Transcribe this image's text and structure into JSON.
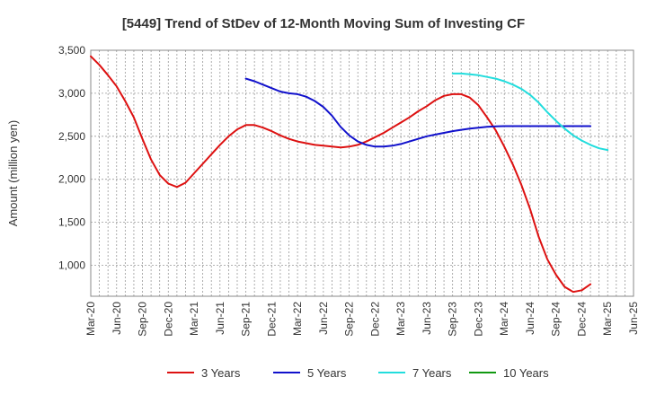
{
  "chart_data": {
    "type": "line",
    "title": "[5449]  Trend of StDev of 12-Month Moving Sum of Investing CF",
    "xlabel": "",
    "ylabel": "Amount (million yen)",
    "ylim": [
      640,
      3500
    ],
    "yticks": [
      1000,
      1500,
      2000,
      2500,
      3000,
      3500
    ],
    "ytick_labels": [
      "1,000",
      "1,500",
      "2,000",
      "2,500",
      "3,000",
      "3,500"
    ],
    "xtick_labels": [
      "Mar-20",
      "Jun-20",
      "Sep-20",
      "Dec-20",
      "Mar-21",
      "Jun-21",
      "Sep-21",
      "Dec-21",
      "Mar-22",
      "Jun-22",
      "Sep-22",
      "Dec-22",
      "Mar-23",
      "Jun-23",
      "Sep-23",
      "Dec-23",
      "Mar-24",
      "Jun-24",
      "Sep-24",
      "Dec-24",
      "Mar-25",
      "Jun-25"
    ],
    "grid": true,
    "legend_position": "bottom",
    "series": [
      {
        "name": "3 Years",
        "color": "#dd1111",
        "start_month": 0,
        "values": [
          3430,
          3330,
          3210,
          3080,
          2910,
          2720,
          2470,
          2230,
          2050,
          1950,
          1910,
          1960,
          2070,
          2180,
          2290,
          2400,
          2500,
          2580,
          2630,
          2630,
          2600,
          2560,
          2510,
          2470,
          2440,
          2420,
          2400,
          2390,
          2380,
          2370,
          2380,
          2400,
          2440,
          2490,
          2540,
          2600,
          2660,
          2720,
          2790,
          2850,
          2920,
          2970,
          2990,
          2990,
          2950,
          2860,
          2720,
          2570,
          2380,
          2170,
          1930,
          1650,
          1330,
          1070,
          890,
          750,
          690,
          710,
          780
        ]
      },
      {
        "name": "5 Years",
        "color": "#1111cc",
        "start_month": 18,
        "values": [
          3170,
          3140,
          3100,
          3060,
          3020,
          3000,
          2990,
          2960,
          2910,
          2840,
          2740,
          2610,
          2510,
          2440,
          2400,
          2380,
          2380,
          2390,
          2410,
          2440,
          2470,
          2500,
          2520,
          2540,
          2560,
          2575,
          2590,
          2600,
          2610,
          2615,
          2618,
          2618,
          2618,
          2618,
          2618,
          2618,
          2618,
          2618,
          2618,
          2618,
          2618
        ]
      },
      {
        "name": "7 Years",
        "color": "#22dddd",
        "start_month": 42,
        "values": [
          3230,
          3230,
          3220,
          3210,
          3190,
          3170,
          3140,
          3100,
          3050,
          2980,
          2890,
          2780,
          2680,
          2590,
          2510,
          2450,
          2400,
          2360,
          2340
        ]
      },
      {
        "name": "10 Years",
        "color": "#119911",
        "start_month": 0,
        "values": []
      }
    ]
  }
}
